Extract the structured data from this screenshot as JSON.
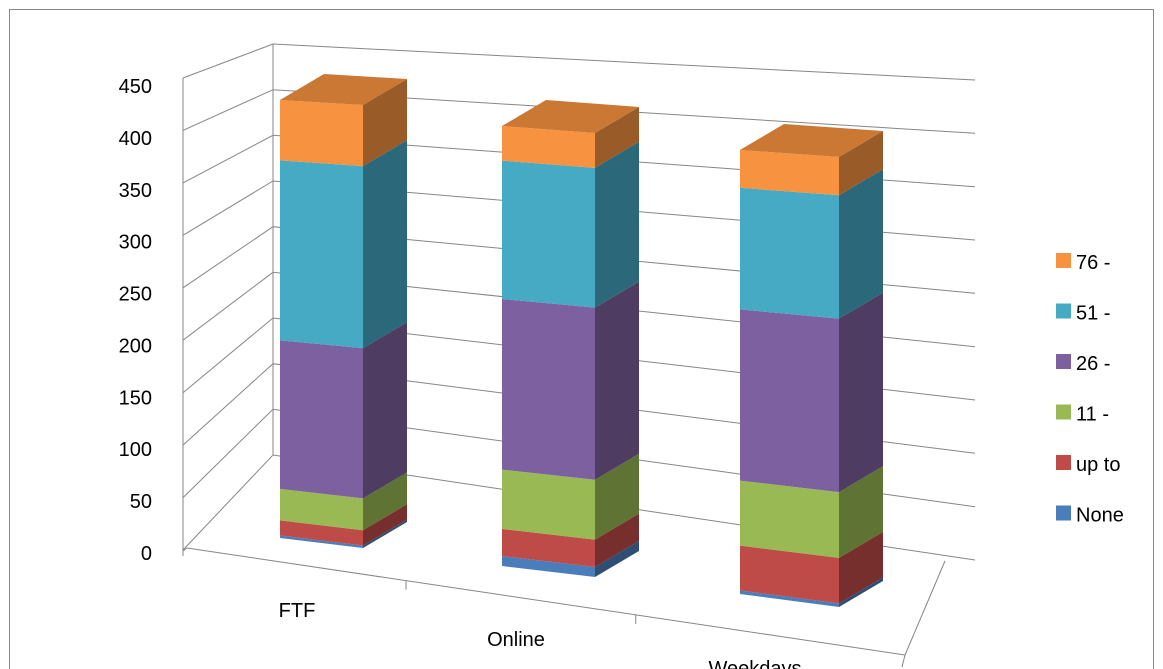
{
  "chart_data": {
    "type": "bar",
    "stacked": true,
    "categories": [
      "FTF",
      "Online",
      "Weekdays"
    ],
    "series": [
      {
        "name": "None",
        "color": "#4a7ebb",
        "values": [
          2,
          8,
          3
        ]
      },
      {
        "name": "up to",
        "color": "#be4b48",
        "values": [
          12,
          22,
          38
        ]
      },
      {
        "name": "11 -",
        "color": "#98b954",
        "values": [
          25,
          48,
          55
        ]
      },
      {
        "name": "26 -",
        "color": "#7d60a0",
        "values": [
          118,
          138,
          145
        ]
      },
      {
        "name": "51 -",
        "color": "#46aac5",
        "values": [
          143,
          112,
          103
        ]
      },
      {
        "name": "76 -",
        "color": "#f69240",
        "values": [
          48,
          28,
          32
        ]
      }
    ],
    "ylim": [
      0,
      450
    ],
    "yticks": [
      "0",
      "50",
      "100",
      "150",
      "200",
      "250",
      "300",
      "350",
      "400",
      "450"
    ],
    "grid": true,
    "legend_position": "right"
  }
}
